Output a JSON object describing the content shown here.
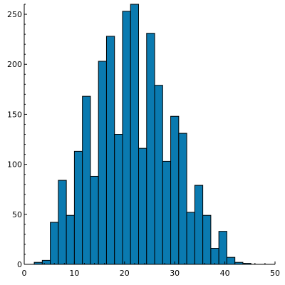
{
  "chart_data": {
    "type": "bar",
    "title": "",
    "xlabel": "",
    "ylabel": "",
    "bin_width": 1.6,
    "x_start": 2,
    "xlim": [
      0,
      50
    ],
    "ylim": [
      0,
      260
    ],
    "values": [
      2,
      4,
      42,
      84,
      49,
      113,
      168,
      88,
      203,
      228,
      130,
      253,
      260,
      116,
      231,
      179,
      103,
      148,
      131,
      52,
      79,
      49,
      16,
      33,
      7,
      2,
      1
    ],
    "x_ticks": [
      0,
      10,
      20,
      30,
      40,
      50
    ],
    "y_ticks": [
      0,
      50,
      100,
      150,
      200,
      250
    ],
    "bar_color": "#0a7ab0",
    "grid": false,
    "legend": "none"
  }
}
